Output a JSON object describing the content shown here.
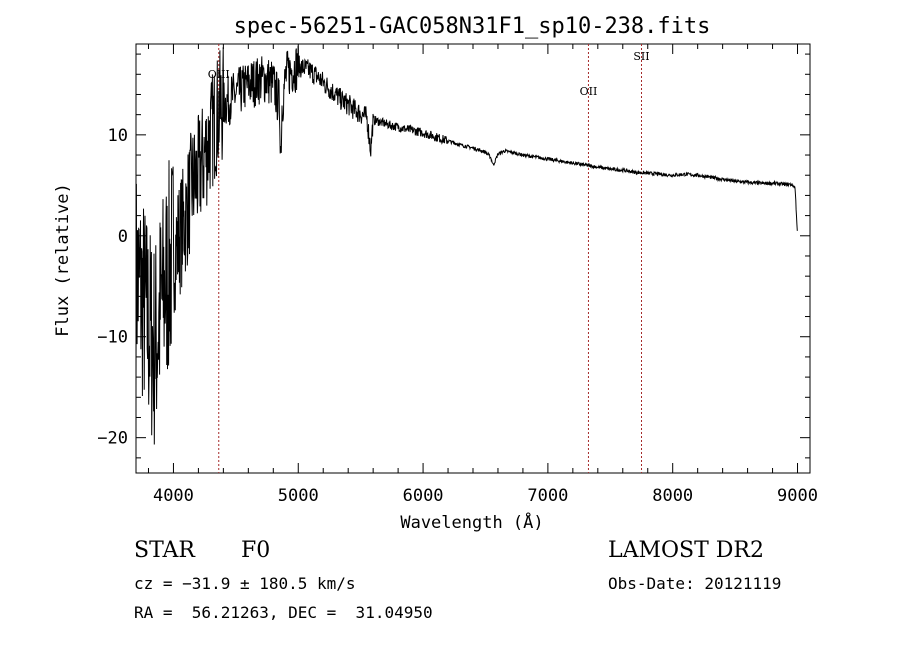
{
  "chart_data": {
    "type": "line",
    "title": "spec-56251-GAC058N31F1_sp10-238.fits",
    "xlabel": "Wavelength (Å)",
    "ylabel": "Flux (relative)",
    "xlim": [
      3700,
      9100
    ],
    "ylim": [
      -23.5,
      19
    ],
    "x_ticks": [
      4000,
      5000,
      6000,
      7000,
      8000,
      9000
    ],
    "x_tick_labels": [
      "4000",
      "5000",
      "6000",
      "7000",
      "8000",
      "9000"
    ],
    "y_ticks": [
      -20,
      -10,
      0,
      10
    ],
    "y_tick_labels": [
      "−20",
      "−10",
      "0",
      "10"
    ],
    "line_color": "#000000",
    "marker_color": "#a52a2a",
    "line_markers": [
      {
        "label": "OIII",
        "x": 4363
      },
      {
        "label": "OII",
        "x": 7325
      },
      {
        "label": "SII",
        "x": 7750
      }
    ],
    "series": [
      {
        "x": [
          3700,
          3750,
          3800,
          3850,
          3900,
          3950,
          4000,
          4050,
          4100,
          4150,
          4200,
          4250,
          4300,
          4350,
          4400,
          4450,
          4500,
          4550,
          4600,
          4650,
          4700,
          4750,
          4800,
          4850,
          4860,
          4870,
          4900,
          4950,
          5000,
          5050,
          5100,
          5150,
          5200,
          5250,
          5300,
          5350,
          5400,
          5450,
          5500,
          5550,
          5580,
          5600,
          5650,
          5700,
          5750,
          5800,
          5850,
          5900,
          6000,
          6100,
          6200,
          6300,
          6400,
          6500,
          6540,
          6563,
          6600,
          6650,
          6700,
          6800,
          6900,
          7000,
          7100,
          7200,
          7300,
          7400,
          7500,
          7600,
          7700,
          7800,
          7900,
          8000,
          8100,
          8200,
          8300,
          8400,
          8500,
          8600,
          8700,
          8800,
          8900,
          8950,
          8980,
          8990,
          9000
        ],
        "y": [
          -4,
          -6,
          -9,
          -11,
          -7,
          -4,
          -2,
          0,
          2,
          5,
          6,
          8,
          10,
          12,
          13,
          13.5,
          14,
          14.5,
          15,
          15.2,
          15.5,
          15.5,
          15,
          13,
          8,
          13,
          15.8,
          16.5,
          16.8,
          16.6,
          16.3,
          15.8,
          15.2,
          14.6,
          14,
          13.4,
          13,
          12.5,
          12.1,
          11.7,
          8.5,
          11.5,
          11.3,
          11.1,
          10.9,
          10.8,
          10.6,
          10.5,
          10.2,
          9.8,
          9.4,
          9.0,
          8.7,
          8.3,
          7.8,
          7.0,
          8.1,
          8.4,
          8.3,
          8.0,
          7.8,
          7.6,
          7.4,
          7.2,
          7.0,
          6.8,
          6.6,
          6.5,
          6.3,
          6.2,
          6.1,
          6.0,
          6.1,
          6.0,
          5.8,
          5.6,
          5.4,
          5.3,
          5.2,
          5.2,
          5.1,
          5.1,
          4.8,
          2.5,
          0
        ]
      }
    ]
  },
  "info": {
    "object_class": "STAR",
    "subclass": "F0",
    "survey": "LAMOST DR2",
    "redshift_line": "cz = −31.9 ± 180.5 km/s",
    "obs_date": "Obs-Date: 20121119",
    "coords": "RA =  56.21263, DEC =  31.04950"
  }
}
